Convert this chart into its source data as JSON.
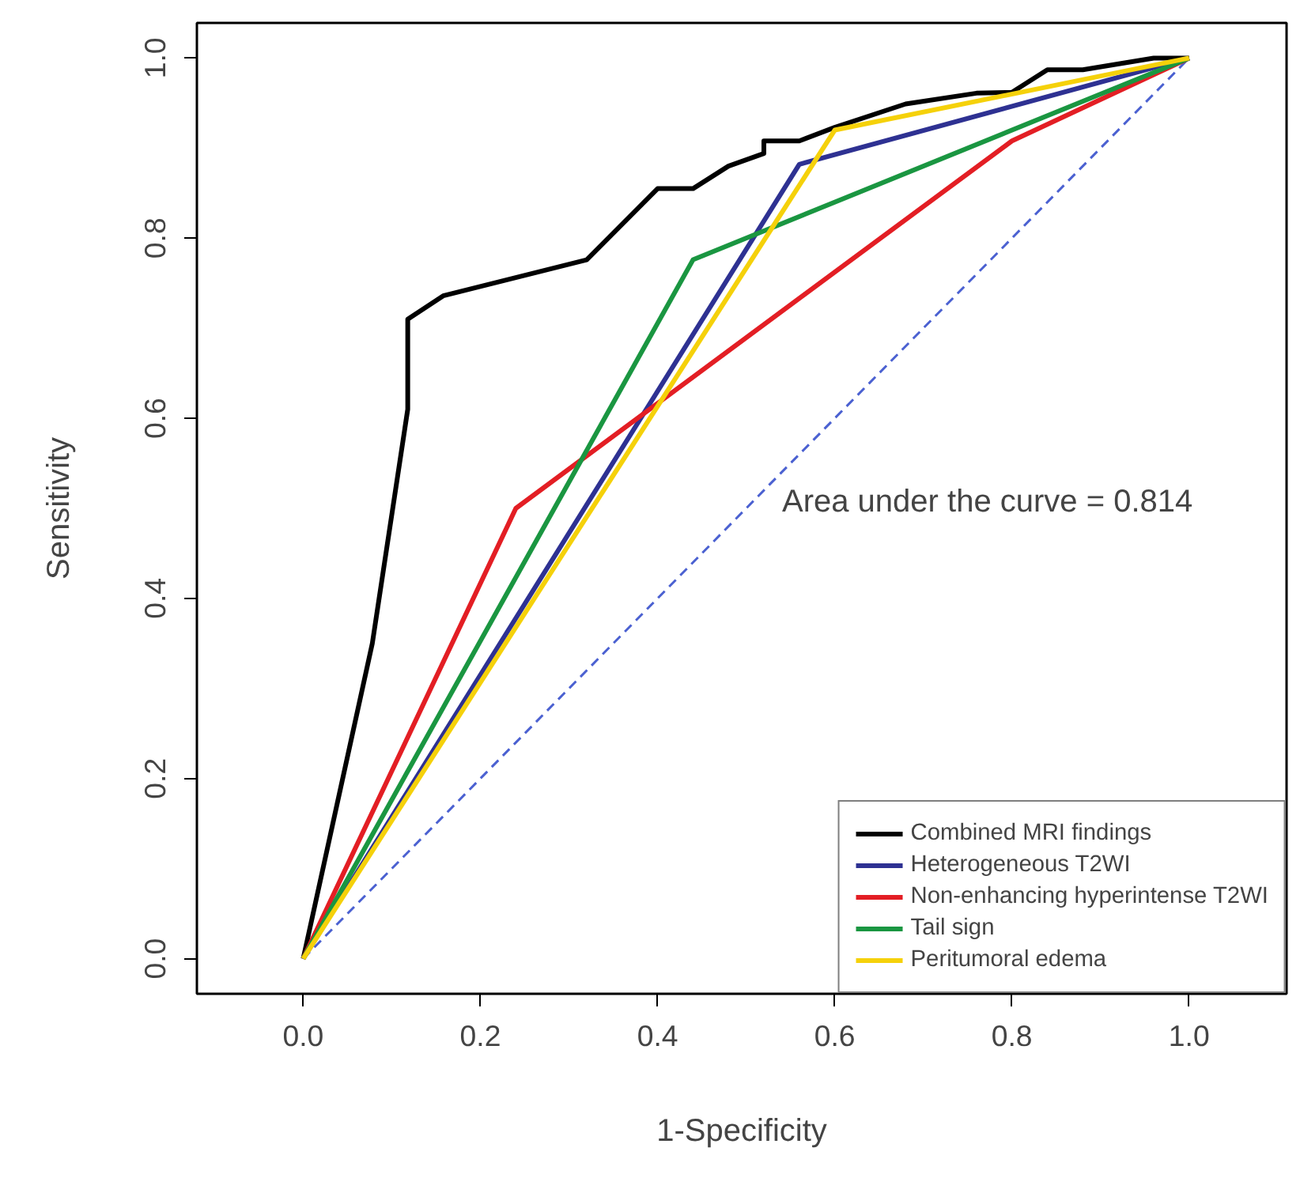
{
  "chart_data": {
    "type": "line",
    "xlabel": "1-Specificity",
    "ylabel": "Sensitivity",
    "xlim": [
      -0.12,
      1.11
    ],
    "ylim": [
      -0.039,
      1.039
    ],
    "xticks": [
      {
        "value": 0,
        "label": "0.0"
      },
      {
        "value": 0.2,
        "label": "0.2"
      },
      {
        "value": 0.4,
        "label": "0.4"
      },
      {
        "value": 0.6,
        "label": "0.6"
      },
      {
        "value": 0.8,
        "label": "0.8"
      },
      {
        "value": 1,
        "label": "1.0"
      }
    ],
    "yticks": [
      {
        "value": 0,
        "label": "0.0"
      },
      {
        "value": 0.2,
        "label": "0.2"
      },
      {
        "value": 0.4,
        "label": "0.4"
      },
      {
        "value": 0.6,
        "label": "0.6"
      },
      {
        "value": 0.8,
        "label": "0.8"
      },
      {
        "value": 1,
        "label": "1.0"
      }
    ],
    "grid": false,
    "legend": "bottom right",
    "marker": "none",
    "annotations": [
      "Area under the curve = 0.814"
    ],
    "series": [
      {
        "color": "#4b61d1",
        "line_style": "dashed",
        "x": [
          0,
          1
        ],
        "values": [
          0,
          1
        ]
      },
      {
        "name": "Combined MRI findings",
        "color": "#000000",
        "x": [
          0,
          0.078,
          0.118,
          0.118,
          0.158,
          0.32,
          0.4,
          0.44,
          0.48,
          0.52,
          0.52,
          0.56,
          0.6,
          0.68,
          0.76,
          0.8,
          0.84,
          0.88,
          0.96,
          1
        ],
        "values": [
          0,
          0.35,
          0.61,
          0.71,
          0.736,
          0.776,
          0.855,
          0.855,
          0.88,
          0.894,
          0.908,
          0.908,
          0.923,
          0.949,
          0.961,
          0.962,
          0.987,
          0.987,
          1,
          1
        ]
      },
      {
        "name": "Heterogeneous T2WI",
        "color": "#2e3192",
        "x": [
          0,
          0.56,
          1
        ],
        "values": [
          0,
          0.882,
          1
        ]
      },
      {
        "name": "Non-enhancing hyperintense T2WI",
        "color": "#e31e24",
        "x": [
          0,
          0.24,
          0.8,
          1
        ],
        "values": [
          0,
          0.5,
          0.908,
          1
        ]
      },
      {
        "name": "Tail sign",
        "color": "#1a9641",
        "x": [
          0,
          0.44,
          1
        ],
        "values": [
          0,
          0.776,
          1
        ]
      },
      {
        "name": "Peritumoral edema",
        "color": "#f5d10a",
        "x": [
          0,
          0.6,
          1
        ],
        "values": [
          0,
          0.92,
          1
        ]
      }
    ]
  }
}
